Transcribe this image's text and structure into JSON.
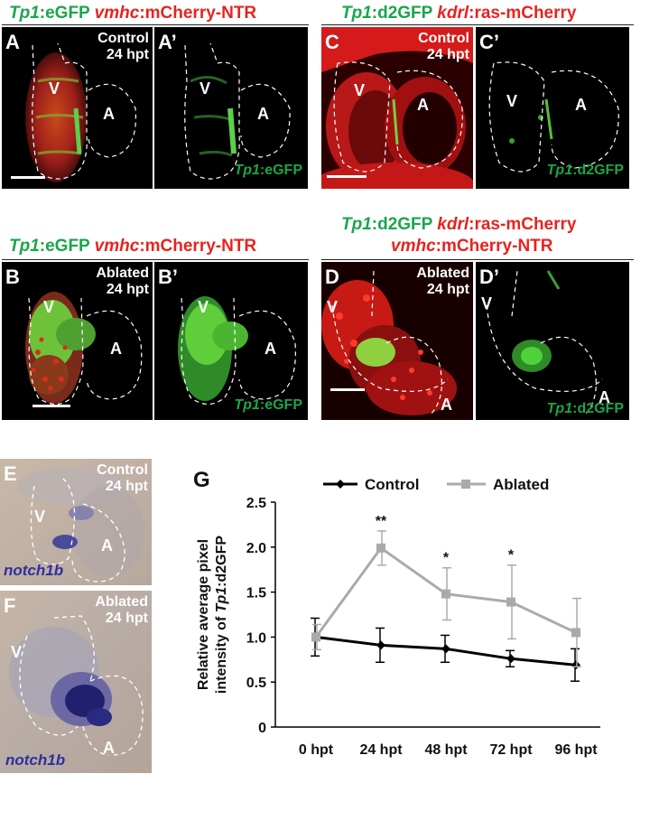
{
  "headers": {
    "left_top": [
      {
        "text": "Tp1",
        "color": "green",
        "italic": true
      },
      {
        "text": ":eGFP ",
        "color": "green",
        "italic": false
      },
      {
        "text": "vmhc",
        "color": "red",
        "italic": true
      },
      {
        "text": ":mCherry-NTR",
        "color": "red",
        "italic": false
      }
    ],
    "right_top": [
      {
        "text": "Tp1",
        "color": "green",
        "italic": true
      },
      {
        "text": ":d2GFP ",
        "color": "green",
        "italic": false
      },
      {
        "text": "kdrl",
        "color": "red",
        "italic": true
      },
      {
        "text": ":ras-mCherry",
        "color": "red",
        "italic": false
      }
    ],
    "left_mid": [
      {
        "text": "Tp1",
        "color": "green",
        "italic": true
      },
      {
        "text": ":eGFP ",
        "color": "green",
        "italic": false
      },
      {
        "text": "vmhc",
        "color": "red",
        "italic": true
      },
      {
        "text": ":mCherry-NTR",
        "color": "red",
        "italic": false
      }
    ],
    "right_mid_1": [
      {
        "text": "Tp1",
        "color": "green",
        "italic": true
      },
      {
        "text": ":d2GFP ",
        "color": "green",
        "italic": false
      },
      {
        "text": "kdrl",
        "color": "red",
        "italic": true
      },
      {
        "text": ":ras-mCherry",
        "color": "red",
        "italic": false
      }
    ],
    "right_mid_2": [
      {
        "text": "vmhc",
        "color": "red",
        "italic": true
      },
      {
        "text": ":mCherry-NTR",
        "color": "red",
        "italic": false
      }
    ]
  },
  "panels": {
    "A": {
      "letter": "A",
      "cond": "Control",
      "time": "24 hpt",
      "v": "V",
      "a": "A"
    },
    "A2": {
      "letter": "A’",
      "v": "V",
      "a": "A",
      "gene": "Tp1",
      "rep": ":eGFP"
    },
    "C": {
      "letter": "C",
      "cond": "Control",
      "time": "24 hpt",
      "v": "V",
      "a": "A"
    },
    "C2": {
      "letter": "C’",
      "v": "V",
      "a": "A",
      "gene": "Tp1",
      "rep": ":d2GFP"
    },
    "B": {
      "letter": "B",
      "cond": "Ablated",
      "time": "24 hpt",
      "v": "V",
      "a": "A"
    },
    "B2": {
      "letter": "B’",
      "v": "V",
      "a": "A",
      "gene": "Tp1",
      "rep": ":eGFP"
    },
    "D": {
      "letter": "D",
      "cond": "Ablated",
      "time": "24 hpt",
      "v": "V",
      "a": "A"
    },
    "D2": {
      "letter": "D’",
      "v": "V",
      "a": "A",
      "gene": "Tp1",
      "rep": ":d2GFP"
    },
    "E": {
      "letter": "E",
      "cond": "Control",
      "time": "24 hpt",
      "v": "V",
      "a": "A",
      "probe": "notch1b"
    },
    "F": {
      "letter": "F",
      "cond": "Ablated",
      "time": "24 hpt",
      "v": "V",
      "a": "A",
      "probe": "notch1b"
    }
  },
  "chart_label": "G",
  "chart_data": {
    "type": "line",
    "ylabel_line1": "Relative average pixel",
    "ylabel_line2_prefix": "intensity of ",
    "ylabel_line2_gene": "Tp1",
    "ylabel_line2_suffix": ":d2GFP",
    "categories": [
      "0 hpt",
      "24 hpt",
      "48 hpt",
      "72 hpt",
      "96 hpt"
    ],
    "ylim": [
      0,
      2.5
    ],
    "yticks": [
      "0",
      "0.5",
      "1.0",
      "1.5",
      "2.0",
      "2.5"
    ],
    "legend_position": "top",
    "series": [
      {
        "name": "Control",
        "color": "#000000",
        "marker": "diamond",
        "values": [
          1.0,
          0.91,
          0.87,
          0.76,
          0.69
        ],
        "err": [
          0.21,
          0.19,
          0.15,
          0.09,
          0.18
        ]
      },
      {
        "name": "Ablated",
        "color": "#aaaaaa",
        "marker": "square",
        "values": [
          1.0,
          1.99,
          1.48,
          1.39,
          1.05
        ],
        "err": [
          0.14,
          0.19,
          0.29,
          0.41,
          0.38
        ]
      }
    ],
    "significance": [
      {
        "index": 1,
        "label": "**"
      },
      {
        "index": 2,
        "label": "*"
      },
      {
        "index": 3,
        "label": "*"
      }
    ]
  }
}
